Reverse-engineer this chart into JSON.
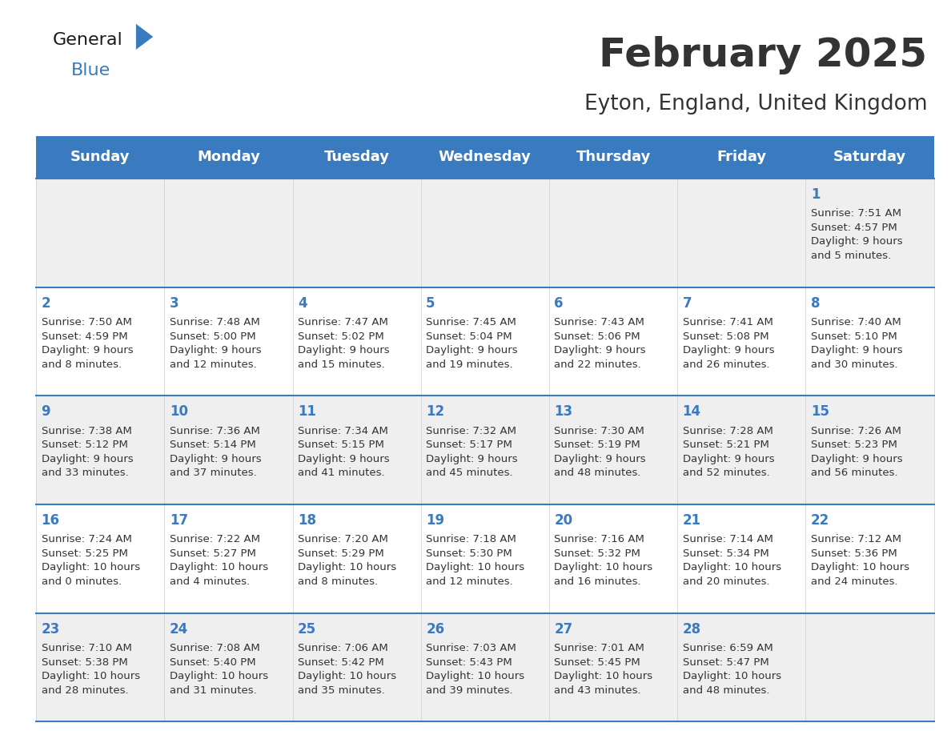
{
  "title": "February 2025",
  "subtitle": "Eyton, England, United Kingdom",
  "header_bg": "#3a7bbf",
  "header_text": "#ffffff",
  "row_bg_light": "#efefef",
  "row_bg_white": "#ffffff",
  "day_number_color": "#3a7bbf",
  "text_color": "#333333",
  "separator_color": "#3a7bbf",
  "days_of_week": [
    "Sunday",
    "Monday",
    "Tuesday",
    "Wednesday",
    "Thursday",
    "Friday",
    "Saturday"
  ],
  "calendar": [
    [
      {
        "day": null,
        "sunrise": null,
        "sunset": null,
        "daylight": null
      },
      {
        "day": null,
        "sunrise": null,
        "sunset": null,
        "daylight": null
      },
      {
        "day": null,
        "sunrise": null,
        "sunset": null,
        "daylight": null
      },
      {
        "day": null,
        "sunrise": null,
        "sunset": null,
        "daylight": null
      },
      {
        "day": null,
        "sunrise": null,
        "sunset": null,
        "daylight": null
      },
      {
        "day": null,
        "sunrise": null,
        "sunset": null,
        "daylight": null
      },
      {
        "day": 1,
        "sunrise": "7:51 AM",
        "sunset": "4:57 PM",
        "daylight": "9 hours\nand 5 minutes."
      }
    ],
    [
      {
        "day": 2,
        "sunrise": "7:50 AM",
        "sunset": "4:59 PM",
        "daylight": "9 hours\nand 8 minutes."
      },
      {
        "day": 3,
        "sunrise": "7:48 AM",
        "sunset": "5:00 PM",
        "daylight": "9 hours\nand 12 minutes."
      },
      {
        "day": 4,
        "sunrise": "7:47 AM",
        "sunset": "5:02 PM",
        "daylight": "9 hours\nand 15 minutes."
      },
      {
        "day": 5,
        "sunrise": "7:45 AM",
        "sunset": "5:04 PM",
        "daylight": "9 hours\nand 19 minutes."
      },
      {
        "day": 6,
        "sunrise": "7:43 AM",
        "sunset": "5:06 PM",
        "daylight": "9 hours\nand 22 minutes."
      },
      {
        "day": 7,
        "sunrise": "7:41 AM",
        "sunset": "5:08 PM",
        "daylight": "9 hours\nand 26 minutes."
      },
      {
        "day": 8,
        "sunrise": "7:40 AM",
        "sunset": "5:10 PM",
        "daylight": "9 hours\nand 30 minutes."
      }
    ],
    [
      {
        "day": 9,
        "sunrise": "7:38 AM",
        "sunset": "5:12 PM",
        "daylight": "9 hours\nand 33 minutes."
      },
      {
        "day": 10,
        "sunrise": "7:36 AM",
        "sunset": "5:14 PM",
        "daylight": "9 hours\nand 37 minutes."
      },
      {
        "day": 11,
        "sunrise": "7:34 AM",
        "sunset": "5:15 PM",
        "daylight": "9 hours\nand 41 minutes."
      },
      {
        "day": 12,
        "sunrise": "7:32 AM",
        "sunset": "5:17 PM",
        "daylight": "9 hours\nand 45 minutes."
      },
      {
        "day": 13,
        "sunrise": "7:30 AM",
        "sunset": "5:19 PM",
        "daylight": "9 hours\nand 48 minutes."
      },
      {
        "day": 14,
        "sunrise": "7:28 AM",
        "sunset": "5:21 PM",
        "daylight": "9 hours\nand 52 minutes."
      },
      {
        "day": 15,
        "sunrise": "7:26 AM",
        "sunset": "5:23 PM",
        "daylight": "9 hours\nand 56 minutes."
      }
    ],
    [
      {
        "day": 16,
        "sunrise": "7:24 AM",
        "sunset": "5:25 PM",
        "daylight": "10 hours\nand 0 minutes."
      },
      {
        "day": 17,
        "sunrise": "7:22 AM",
        "sunset": "5:27 PM",
        "daylight": "10 hours\nand 4 minutes."
      },
      {
        "day": 18,
        "sunrise": "7:20 AM",
        "sunset": "5:29 PM",
        "daylight": "10 hours\nand 8 minutes."
      },
      {
        "day": 19,
        "sunrise": "7:18 AM",
        "sunset": "5:30 PM",
        "daylight": "10 hours\nand 12 minutes."
      },
      {
        "day": 20,
        "sunrise": "7:16 AM",
        "sunset": "5:32 PM",
        "daylight": "10 hours\nand 16 minutes."
      },
      {
        "day": 21,
        "sunrise": "7:14 AM",
        "sunset": "5:34 PM",
        "daylight": "10 hours\nand 20 minutes."
      },
      {
        "day": 22,
        "sunrise": "7:12 AM",
        "sunset": "5:36 PM",
        "daylight": "10 hours\nand 24 minutes."
      }
    ],
    [
      {
        "day": 23,
        "sunrise": "7:10 AM",
        "sunset": "5:38 PM",
        "daylight": "10 hours\nand 28 minutes."
      },
      {
        "day": 24,
        "sunrise": "7:08 AM",
        "sunset": "5:40 PM",
        "daylight": "10 hours\nand 31 minutes."
      },
      {
        "day": 25,
        "sunrise": "7:06 AM",
        "sunset": "5:42 PM",
        "daylight": "10 hours\nand 35 minutes."
      },
      {
        "day": 26,
        "sunrise": "7:03 AM",
        "sunset": "5:43 PM",
        "daylight": "10 hours\nand 39 minutes."
      },
      {
        "day": 27,
        "sunrise": "7:01 AM",
        "sunset": "5:45 PM",
        "daylight": "10 hours\nand 43 minutes."
      },
      {
        "day": 28,
        "sunrise": "6:59 AM",
        "sunset": "5:47 PM",
        "daylight": "10 hours\nand 48 minutes."
      },
      {
        "day": null,
        "sunrise": null,
        "sunset": null,
        "daylight": null
      }
    ]
  ],
  "logo_general_color": "#1a1a1a",
  "logo_blue_color": "#3a7bbf",
  "title_fontsize": 36,
  "subtitle_fontsize": 19,
  "header_fontsize": 13,
  "day_num_fontsize": 12,
  "cell_text_fontsize": 9.5,
  "fig_width": 11.88,
  "fig_height": 9.18
}
